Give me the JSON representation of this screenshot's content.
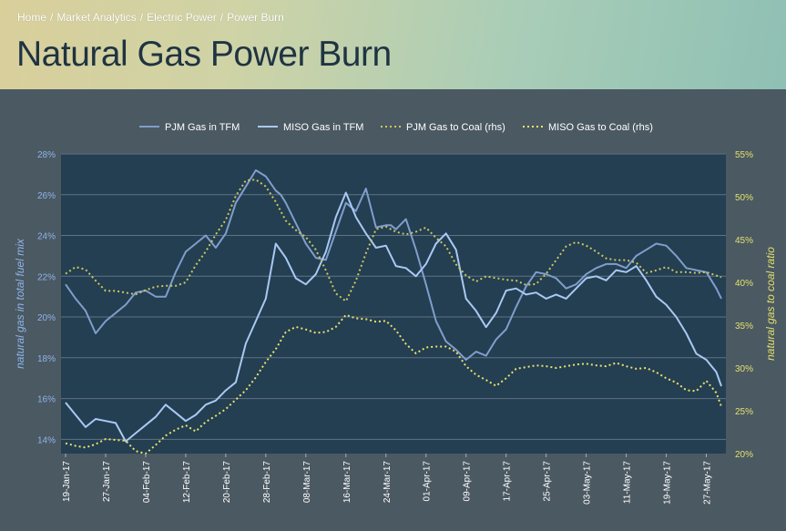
{
  "breadcrumb": [
    "Home",
    "Market Analytics",
    "Electric Power",
    "Power Burn"
  ],
  "page_title": "Natural Gas Power Burn",
  "colors": {
    "plot_bg": "#243e52",
    "pjm_gas": "#7f9ecb",
    "miso_gas": "#a9c9f3",
    "pjm_coal": "#c9c85f",
    "miso_coal": "#e6e46a",
    "left_axis": "#8fb4ea",
    "right_axis": "#e2e06d"
  },
  "chart_data": {
    "type": "line",
    "ylabel": "natural gas in total fuel mix",
    "y2label": "natural gas to coal ratio",
    "ylim": [
      13.3,
      28
    ],
    "yticks": [
      "14%",
      "16%",
      "18%",
      "20%",
      "22%",
      "24%",
      "26%",
      "28%"
    ],
    "ytick_values": [
      14,
      16,
      18,
      20,
      22,
      24,
      26,
      28
    ],
    "y2lim": [
      20,
      55
    ],
    "y2ticks": [
      "20%",
      "25%",
      "30%",
      "35%",
      "40%",
      "45%",
      "50%",
      "55%"
    ],
    "y2tick_values": [
      20,
      25,
      30,
      35,
      40,
      45,
      50,
      55
    ],
    "xticks": [
      "19-Jan-17",
      "27-Jan-17",
      "04-Feb-17",
      "12-Feb-17",
      "20-Feb-17",
      "28-Feb-17",
      "08-Mar-17",
      "16-Mar-17",
      "24-Mar-17",
      "01-Apr-17",
      "09-Apr-17",
      "17-Apr-17",
      "25-Apr-17",
      "03-May-17",
      "11-May-17",
      "19-May-17",
      "27-May-17"
    ],
    "xtick_days": [
      0,
      8,
      16,
      24,
      32,
      40,
      48,
      56,
      64,
      72,
      80,
      88,
      96,
      104,
      112,
      120,
      128
    ],
    "legend_position": "top",
    "grid": true,
    "series": [
      {
        "name": "PJM Gas in TFM",
        "axis": "left",
        "style": "solid",
        "x": [
          0,
          2,
          4,
          6,
          8,
          10,
          12,
          14,
          16,
          18,
          20,
          22,
          24,
          26,
          28,
          30,
          32,
          34,
          36,
          38,
          40,
          42,
          43,
          44,
          46,
          48,
          50,
          52,
          54,
          56,
          58,
          60,
          62,
          64,
          65,
          66,
          68,
          70,
          72,
          74,
          76,
          78,
          80,
          82,
          84,
          86,
          88,
          90,
          92,
          94,
          96,
          98,
          100,
          102,
          104,
          106,
          108,
          110,
          112,
          114,
          116,
          118,
          120,
          122,
          124,
          126,
          128,
          130,
          131
        ],
        "y": [
          21.6,
          20.9,
          20.3,
          19.2,
          19.8,
          20.2,
          20.6,
          21.2,
          21.3,
          21.0,
          21.0,
          22.2,
          23.2,
          23.6,
          24.0,
          23.4,
          24.1,
          25.6,
          26.4,
          27.2,
          26.9,
          26.2,
          26.0,
          25.6,
          24.6,
          23.6,
          22.9,
          22.8,
          24.2,
          25.6,
          25.2,
          26.3,
          24.4,
          24.5,
          24.5,
          24.3,
          24.8,
          23.3,
          21.6,
          19.8,
          18.8,
          18.4,
          17.9,
          18.3,
          18.1,
          18.9,
          19.4,
          20.5,
          21.5,
          22.2,
          22.1,
          21.9,
          21.4,
          21.6,
          22.1,
          22.4,
          22.6,
          22.6,
          22.4,
          23.0,
          23.3,
          23.6,
          23.5,
          23.0,
          22.4,
          22.3,
          22.2,
          21.4,
          20.9
        ]
      },
      {
        "name": "MISO Gas in TFM",
        "axis": "left",
        "style": "solid",
        "x": [
          0,
          2,
          4,
          6,
          8,
          10,
          12,
          14,
          16,
          18,
          20,
          22,
          24,
          26,
          28,
          30,
          32,
          34,
          36,
          38,
          40,
          42,
          44,
          46,
          48,
          50,
          52,
          54,
          56,
          58,
          60,
          62,
          64,
          66,
          68,
          70,
          72,
          74,
          76,
          78,
          80,
          82,
          84,
          86,
          88,
          90,
          92,
          94,
          96,
          98,
          100,
          102,
          104,
          106,
          108,
          110,
          112,
          114,
          116,
          118,
          120,
          122,
          124,
          126,
          128,
          130,
          131
        ],
        "y": [
          15.8,
          15.2,
          14.6,
          15.0,
          14.9,
          14.8,
          13.9,
          14.3,
          14.7,
          15.1,
          15.7,
          15.3,
          14.9,
          15.2,
          15.7,
          15.9,
          16.4,
          16.8,
          18.7,
          19.8,
          20.9,
          23.6,
          22.9,
          21.9,
          21.6,
          22.1,
          23.2,
          24.9,
          26.1,
          24.9,
          24.1,
          23.4,
          23.5,
          22.5,
          22.4,
          22.0,
          22.6,
          23.6,
          24.1,
          23.3,
          20.9,
          20.3,
          19.5,
          20.2,
          21.3,
          21.4,
          21.1,
          21.2,
          20.9,
          21.1,
          20.9,
          21.4,
          21.9,
          22.0,
          21.8,
          22.3,
          22.2,
          22.5,
          21.8,
          21.0,
          20.6,
          20.0,
          19.2,
          18.2,
          17.9,
          17.3,
          16.6
        ]
      },
      {
        "name": "PJM Gas to Coal (rhs)",
        "axis": "right",
        "style": "dotted",
        "x": [
          0,
          2,
          4,
          6,
          8,
          10,
          12,
          14,
          16,
          18,
          20,
          22,
          24,
          26,
          28,
          30,
          32,
          34,
          36,
          38,
          40,
          42,
          44,
          46,
          48,
          50,
          52,
          54,
          56,
          58,
          60,
          62,
          64,
          66,
          68,
          70,
          72,
          74,
          76,
          78,
          80,
          82,
          84,
          86,
          88,
          90,
          92,
          94,
          96,
          98,
          100,
          102,
          104,
          106,
          108,
          110,
          112,
          114,
          116,
          118,
          120,
          122,
          124,
          126,
          128,
          130,
          131
        ],
        "y": [
          41.0,
          41.8,
          41.5,
          40.2,
          39.0,
          39.0,
          38.8,
          38.6,
          39.1,
          39.5,
          39.6,
          39.6,
          40.0,
          42.0,
          43.6,
          45.6,
          47.3,
          50.1,
          51.9,
          52.0,
          51.2,
          49.4,
          47.2,
          46.1,
          45.3,
          43.8,
          41.4,
          38.7,
          37.8,
          40.2,
          43.4,
          46.2,
          46.5,
          45.9,
          45.6,
          45.9,
          46.4,
          45.2,
          44.2,
          42.1,
          40.8,
          40.1,
          40.7,
          40.5,
          40.3,
          40.2,
          39.7,
          39.8,
          41.0,
          42.6,
          44.2,
          44.7,
          44.3,
          43.6,
          42.8,
          42.6,
          42.6,
          42.3,
          41.1,
          41.4,
          41.8,
          41.2,
          41.2,
          41.1,
          41.2,
          40.8,
          40.6
        ]
      },
      {
        "name": "MISO Gas to Coal (rhs)",
        "axis": "right",
        "style": "dotted",
        "x": [
          0,
          2,
          4,
          6,
          8,
          10,
          12,
          14,
          16,
          18,
          20,
          22,
          24,
          26,
          28,
          30,
          32,
          34,
          36,
          38,
          40,
          42,
          44,
          46,
          48,
          50,
          52,
          54,
          56,
          58,
          60,
          62,
          64,
          66,
          68,
          70,
          72,
          74,
          76,
          78,
          80,
          82,
          84,
          86,
          88,
          90,
          92,
          94,
          96,
          98,
          100,
          102,
          104,
          106,
          108,
          110,
          112,
          114,
          116,
          118,
          120,
          122,
          124,
          126,
          128,
          130,
          131
        ],
        "y": [
          21.2,
          20.9,
          20.7,
          21.1,
          21.7,
          21.6,
          21.5,
          20.3,
          20.0,
          21.0,
          22.1,
          22.8,
          23.3,
          22.6,
          23.7,
          24.4,
          25.2,
          26.3,
          27.4,
          28.9,
          30.7,
          32.2,
          34.2,
          34.8,
          34.5,
          34.1,
          34.2,
          34.8,
          36.2,
          35.8,
          35.7,
          35.4,
          35.5,
          34.4,
          32.8,
          31.7,
          32.4,
          32.5,
          32.5,
          31.9,
          30.2,
          29.2,
          28.6,
          27.9,
          28.8,
          29.9,
          30.1,
          30.3,
          30.2,
          30.0,
          30.2,
          30.4,
          30.5,
          30.3,
          30.2,
          30.6,
          30.2,
          29.9,
          30.0,
          29.5,
          28.8,
          28.3,
          27.4,
          27.3,
          28.5,
          27.1,
          25.5
        ]
      }
    ]
  }
}
